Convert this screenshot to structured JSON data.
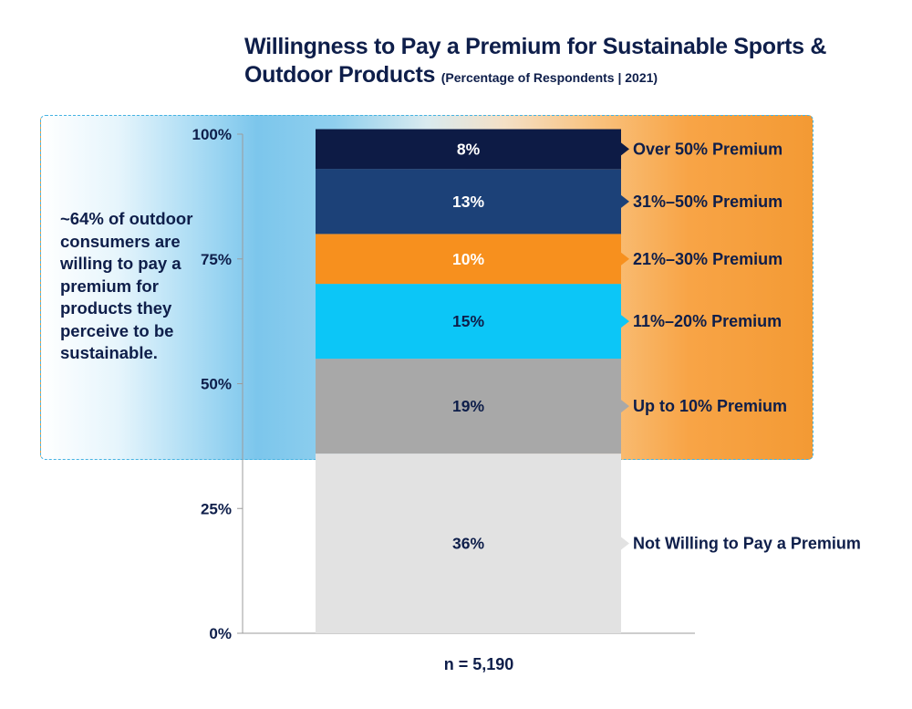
{
  "chart_data": {
    "type": "bar",
    "stacked": true,
    "title": "Willingness to Pay a Premium for Sustainable Sports & Outdoor Products",
    "subtitle": "(Percentage of Respondents | 2021)",
    "ylim": [
      0,
      100
    ],
    "yticks": [
      "0%",
      "25%",
      "50%",
      "75%",
      "100%"
    ],
    "ytick_values": [
      0,
      25,
      50,
      75,
      100
    ],
    "series": [
      {
        "name": "Not Willing to Pay a Premium",
        "value": 36,
        "label": "36%",
        "color": "#e2e2e2",
        "text_color": "#0e1e4a"
      },
      {
        "name": "Up to 10% Premium",
        "value": 19,
        "label": "19%",
        "color": "#a8a8a8",
        "text_color": "#0e1e4a"
      },
      {
        "name": "11%–20% Premium",
        "value": 15,
        "label": "15%",
        "color": "#0cc6f7",
        "text_color": "#0e1e4a"
      },
      {
        "name": "21%–30% Premium",
        "value": 10,
        "label": "10%",
        "color": "#f7901e",
        "text_color": "#ffffff"
      },
      {
        "name": "31%–50% Premium",
        "value": 13,
        "label": "13%",
        "color": "#1c4178",
        "text_color": "#ffffff"
      },
      {
        "name": "Over 50% Premium",
        "value": 8,
        "label": "8%",
        "color": "#0d1b45",
        "text_color": "#ffffff"
      }
    ],
    "highlight_range": [
      36,
      100
    ]
  },
  "callout": "~64% of outdoor consumers are willing to pay a premium for products they perceive to be sustainable.",
  "footnote": "n = 5,190"
}
